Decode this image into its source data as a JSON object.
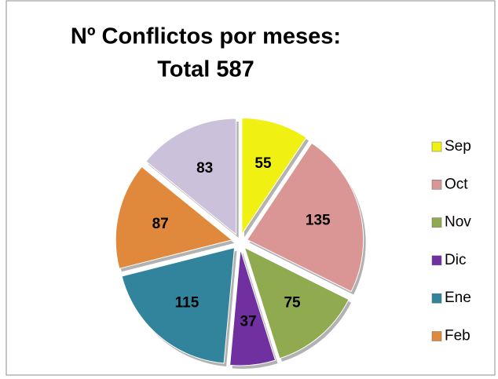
{
  "chart_data": {
    "type": "pie",
    "title": [
      "Nº Conflictos por meses:",
      "Total 587"
    ],
    "categories": [
      "Sep",
      "Oct",
      "Nov",
      "Dic",
      "Ene",
      "Feb",
      null
    ],
    "values": [
      55,
      135,
      75,
      37,
      115,
      87,
      83
    ],
    "colors": [
      "#f0f012",
      "#d99694",
      "#8faa4f",
      "#7030a0",
      "#31849b",
      "#e0883c",
      "#ccc1da"
    ],
    "legend": "right"
  }
}
